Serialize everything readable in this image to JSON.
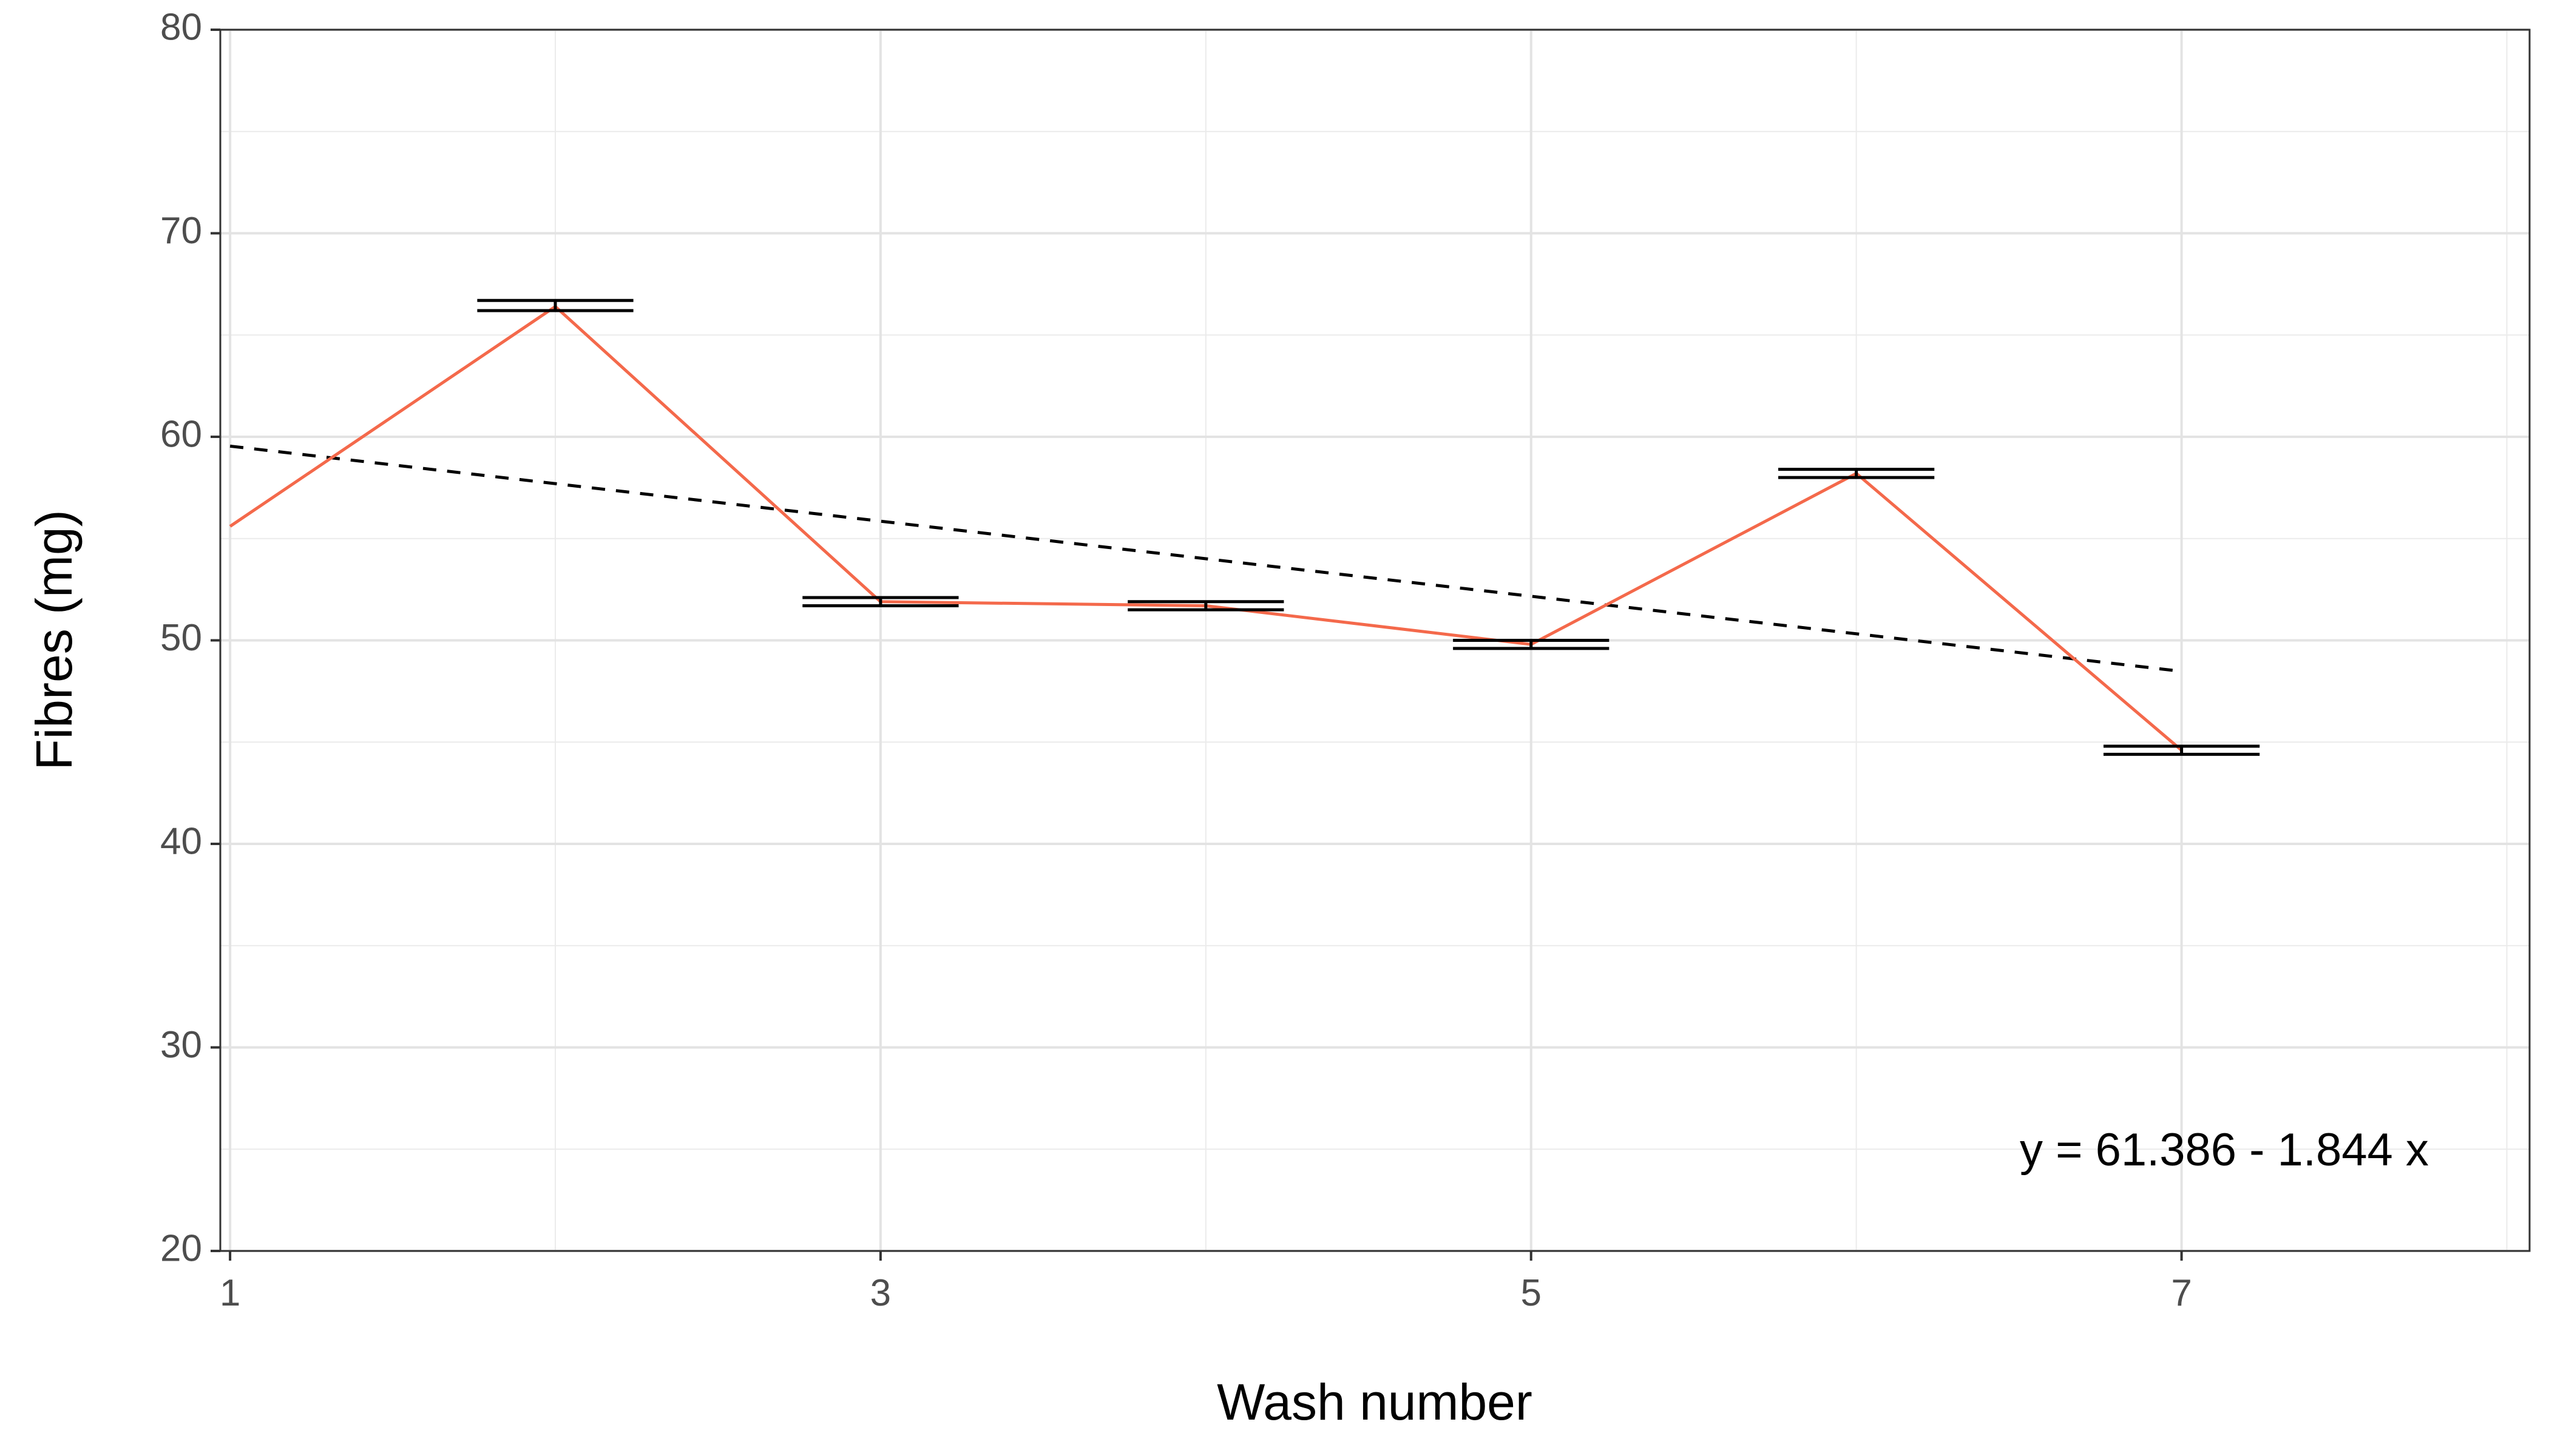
{
  "chart_data": {
    "type": "line",
    "title": "",
    "xlabel": "Wash number",
    "ylabel": "Fibres (mg)",
    "xlim": [
      0.97,
      8.07
    ],
    "ylim": [
      20,
      80
    ],
    "x_ticks": [
      1,
      3,
      5,
      7
    ],
    "x_tick_labels": [
      "1",
      "3",
      "5",
      "7"
    ],
    "y_ticks": [
      20,
      30,
      40,
      50,
      60,
      70,
      80
    ],
    "y_tick_labels": [
      "20",
      "30",
      "40",
      "50",
      "60",
      "70",
      "80"
    ],
    "x_minor_gridlines": [
      2,
      4,
      6,
      8
    ],
    "y_minor_gridlines": [
      25,
      35,
      45,
      55,
      65,
      75
    ],
    "grid": true,
    "legend": "none",
    "series": [
      {
        "x": [
          1,
          2,
          3,
          4,
          5,
          6,
          7
        ],
        "values": [
          55.6,
          66.4,
          51.9,
          51.7,
          49.8,
          58.2,
          44.6
        ],
        "color": "#f4694b",
        "style": "solid"
      }
    ],
    "error_bars": [
      {
        "x": 2,
        "lower": 66.2,
        "upper": 66.7
      },
      {
        "x": 3,
        "lower": 51.7,
        "upper": 52.1
      },
      {
        "x": 4,
        "lower": 51.5,
        "upper": 51.9
      },
      {
        "x": 5,
        "lower": 49.6,
        "upper": 50.0
      },
      {
        "x": 6,
        "lower": 58.0,
        "upper": 58.4
      },
      {
        "x": 7,
        "lower": 44.4,
        "upper": 44.8
      }
    ],
    "trend_line": {
      "intercept": 61.386,
      "slope": -1.844,
      "x_range": [
        1,
        7
      ],
      "style": "dashed",
      "color": "#000000"
    },
    "annotations": [
      {
        "text": "y = 61.386 - 1.844 x",
        "x": 7.76,
        "y": 24.8,
        "anchor": "end"
      }
    ]
  }
}
